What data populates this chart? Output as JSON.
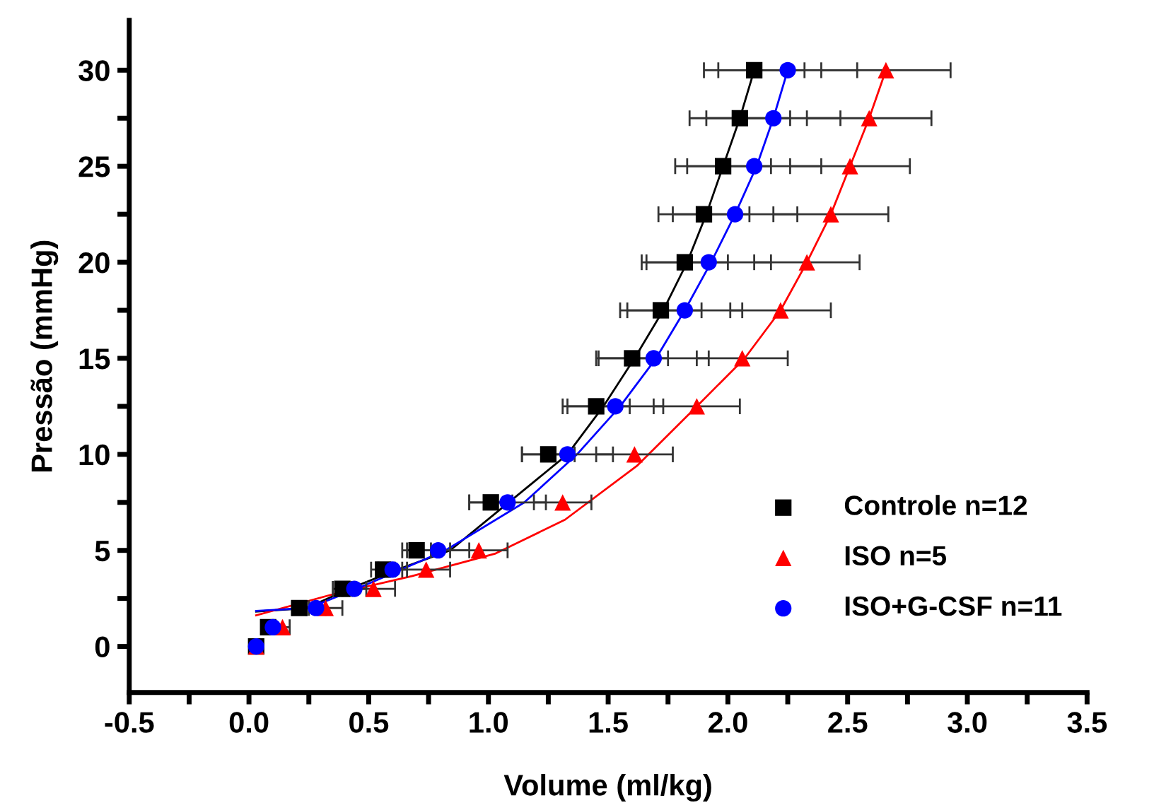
{
  "chart_data": {
    "type": "scatter",
    "xlabel": "Volume (ml/kg)",
    "ylabel": "Pressão (mmHg)",
    "xlim": [
      -0.5,
      3.5
    ],
    "ylim": [
      -2.4,
      32.6
    ],
    "xticks": [
      -0.5,
      {
        "value": -0.25,
        "label": null
      },
      {
        "value": 0,
        "label": "0.0"
      },
      {
        "value": 0.25,
        "label": null
      },
      0.5,
      {
        "value": 0.75,
        "label": null
      },
      {
        "value": 1,
        "label": "1.0"
      },
      {
        "value": 1.25,
        "label": null
      },
      1.5,
      {
        "value": 1.75,
        "label": null
      },
      {
        "value": 2,
        "label": "2.0"
      },
      {
        "value": 2.25,
        "label": null
      },
      2.5,
      {
        "value": 2.75,
        "label": null
      },
      {
        "value": 3,
        "label": "3.0"
      },
      {
        "value": 3.25,
        "label": null
      },
      3.5
    ],
    "yticks": [
      0,
      {
        "value": 2.5,
        "label": null
      },
      5,
      {
        "value": 7.5,
        "label": null
      },
      10,
      {
        "value": 12.5,
        "label": null
      },
      15,
      {
        "value": 17.5,
        "label": null
      },
      20,
      {
        "value": 22.5,
        "label": null
      },
      25,
      {
        "value": 27.5,
        "label": null
      },
      30
    ],
    "grid": false,
    "legend": "right",
    "series": [
      {
        "type": "line",
        "color": "#000000",
        "marker": "none",
        "x": [
          0.03,
          0.24,
          0.42,
          0.62,
          0.84,
          1.33,
          1.48,
          1.61,
          1.73,
          1.83,
          1.91,
          1.98,
          2.05,
          2.11
        ],
        "values": [
          1.82,
          2,
          3,
          4,
          5,
          10,
          12.5,
          15,
          17.5,
          20,
          22.5,
          25,
          27.5,
          30
        ]
      },
      {
        "type": "line",
        "color": "#ff0000",
        "marker": "none",
        "x": [
          0.03,
          0.34,
          0.68,
          1.03,
          1.32,
          1.62,
          1.87,
          2.07,
          2.22,
          2.33,
          2.43,
          2.51,
          2.59,
          2.66
        ],
        "values": [
          1.62,
          2.68,
          3.66,
          4.84,
          6.6,
          9.4,
          12.5,
          15,
          17.5,
          20,
          22.5,
          25,
          27.5,
          30
        ]
      },
      {
        "type": "line",
        "color": "#0000ff",
        "marker": "none",
        "x": [
          0.03,
          0.25,
          0.45,
          0.82,
          1.15,
          1.37,
          1.55,
          1.7,
          1.82,
          1.93,
          2.03,
          2.12,
          2.19,
          2.25
        ],
        "values": [
          1.85,
          2,
          3,
          5,
          7.5,
          10,
          12.5,
          15,
          17.5,
          20,
          22.5,
          25,
          27.5,
          30
        ]
      },
      {
        "name": "Controle n=12",
        "color": "#000000",
        "marker": "square",
        "x": [
          0.03,
          0.08,
          0.21,
          0.39,
          0.56,
          0.7,
          1.01,
          1.25,
          1.45,
          1.6,
          1.72,
          1.82,
          1.9,
          1.98,
          2.05,
          2.11
        ],
        "values": [
          0,
          1,
          2,
          3,
          4,
          5,
          7.5,
          10,
          12.5,
          15,
          17.5,
          20,
          22.5,
          25,
          27.5,
          30
        ],
        "xerrors": [
          null,
          0.02,
          0.03,
          0.04,
          0.05,
          0.06,
          0.09,
          0.11,
          0.14,
          0.15,
          0.17,
          0.18,
          0.19,
          0.2,
          0.21,
          0.21
        ]
      },
      {
        "name": "ISO n=5",
        "color": "#ff0000",
        "marker": "triangle",
        "x": [
          0.03,
          0.14,
          0.32,
          0.52,
          0.74,
          0.96,
          1.31,
          1.61,
          1.87,
          2.06,
          2.22,
          2.33,
          2.43,
          2.51,
          2.59,
          2.66
        ],
        "values": [
          0,
          1,
          2,
          3,
          4,
          5,
          7.5,
          10,
          12.5,
          15,
          17.5,
          20,
          22.5,
          25,
          27.5,
          30
        ],
        "xerrors": [
          null,
          0.03,
          0.07,
          0.09,
          0.1,
          0.12,
          0.12,
          0.16,
          0.18,
          0.19,
          0.21,
          0.22,
          0.24,
          0.25,
          0.26,
          0.27
        ]
      },
      {
        "name": "ISO+G-CSF n=11",
        "color": "#0000ff",
        "marker": "circle",
        "x": [
          0.03,
          0.1,
          0.28,
          0.44,
          0.6,
          0.79,
          1.08,
          1.33,
          1.53,
          1.69,
          1.82,
          1.92,
          2.03,
          2.11,
          2.19,
          2.25
        ],
        "values": [
          0,
          1,
          2,
          3,
          4,
          5,
          7.5,
          10,
          12.5,
          15,
          17.5,
          20,
          22.5,
          25,
          27.5,
          30
        ],
        "xerrors": [
          null,
          null,
          0.04,
          0.05,
          0.06,
          0.13,
          0.16,
          0.19,
          0.2,
          0.23,
          0.24,
          0.26,
          0.26,
          0.28,
          0.28,
          0.29
        ]
      }
    ]
  }
}
